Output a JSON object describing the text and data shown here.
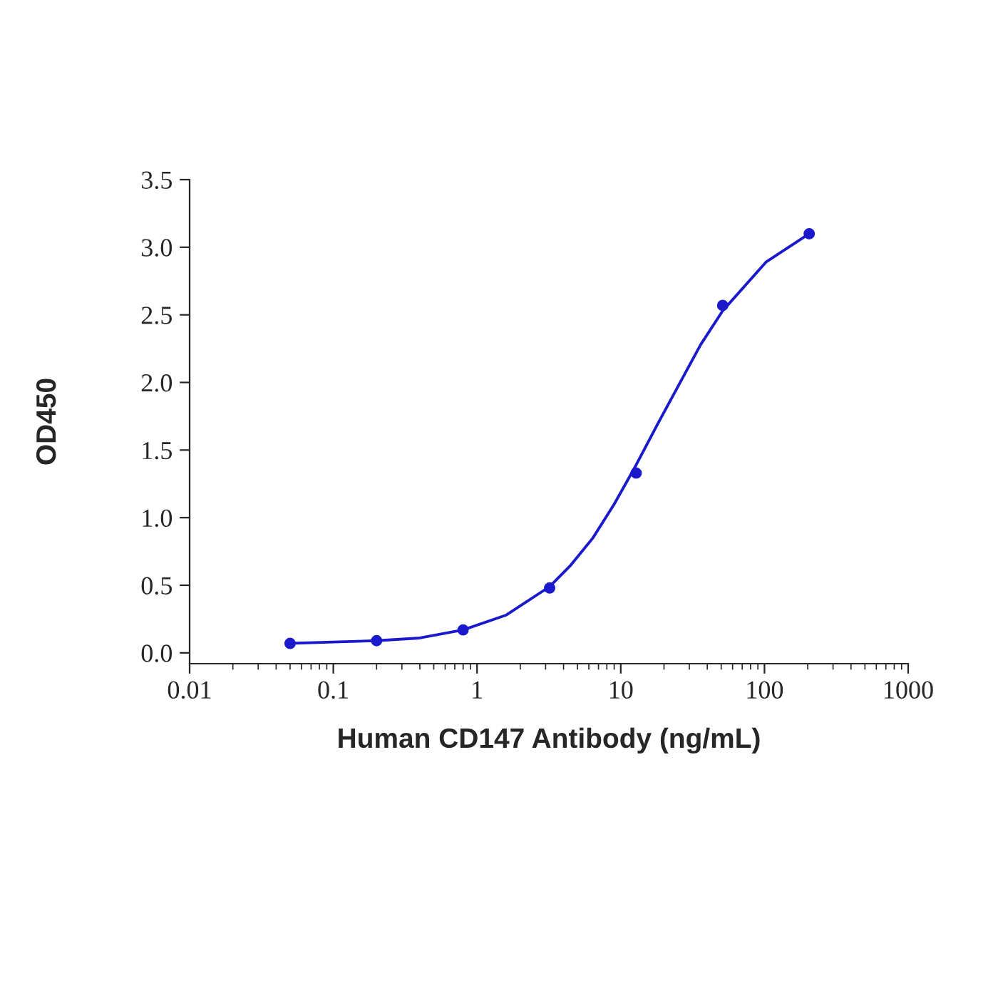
{
  "chart_data": {
    "type": "scatter",
    "xlabel": "Human CD147 Antibody (ng/mL)",
    "ylabel": "OD450",
    "x": [
      0.05,
      0.2,
      0.8,
      3.2,
      12.8,
      51.2,
      204.8
    ],
    "series": [
      {
        "marker": "circle",
        "color": "#1a1acc",
        "values": [
          0.07,
          0.09,
          0.17,
          0.48,
          1.33,
          2.57,
          3.1
        ]
      },
      {
        "type": "line",
        "marker": "none",
        "color": "#1a1acc",
        "x": [
          0.05,
          0.1,
          0.2,
          0.4,
          0.8,
          1.6,
          3.2,
          4.5,
          6.4,
          9,
          12.8,
          18,
          25.6,
          36,
          51.2,
          102.4,
          204.8
        ],
        "values": [
          0.07,
          0.08,
          0.09,
          0.11,
          0.17,
          0.28,
          0.49,
          0.65,
          0.85,
          1.1,
          1.39,
          1.69,
          1.99,
          2.28,
          2.53,
          2.89,
          3.1
        ]
      }
    ],
    "log": "x",
    "line_style": "solid",
    "grid": false,
    "legend": false,
    "xlim": [
      0.01,
      1000
    ],
    "xticks": [
      0.01,
      0.1,
      1,
      10,
      100,
      1000
    ],
    "ylim": [
      -0.08,
      3.5
    ],
    "yticks": [
      {
        "value": 0,
        "label": "0.0"
      },
      {
        "value": 0.5,
        "label": "0.5"
      },
      {
        "value": 1,
        "label": "1.0"
      },
      {
        "value": 1.5,
        "label": "1.5"
      },
      {
        "value": 2,
        "label": "2.0"
      },
      {
        "value": 2.5,
        "label": "2.5"
      },
      {
        "value": 3,
        "label": "3.0"
      },
      {
        "value": 3.5,
        "label": "3.5"
      }
    ]
  }
}
